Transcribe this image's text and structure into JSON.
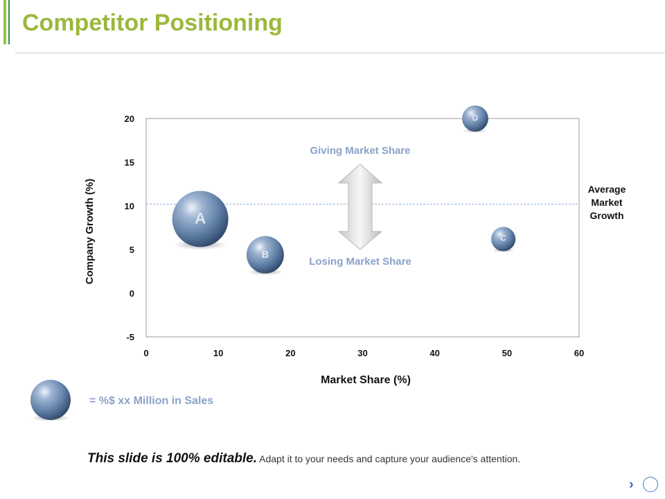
{
  "slide": {
    "title": "Competitor Positioning",
    "legend_text": "= %$ xx Million in Sales",
    "footer_bold": "This slide is 100% editable.",
    "footer_rest": "Adapt it to your needs and capture your audience's attention.",
    "nav_next_glyph": "›"
  },
  "chart_data": {
    "type": "scatter",
    "variant": "bubble",
    "xlabel": "Market Share (%)",
    "ylabel": "Company Growth (%)",
    "xlim": [
      0,
      60
    ],
    "ylim": [
      -5,
      20
    ],
    "xticks": [
      0,
      10,
      20,
      30,
      40,
      50,
      60
    ],
    "yticks": [
      -5,
      0,
      5,
      10,
      15,
      20
    ],
    "grid": false,
    "reference_line": {
      "y": 10.2,
      "label_lines": [
        "Average",
        "Market",
        "Growth"
      ]
    },
    "annotations": {
      "top": "Giving Market Share",
      "bottom": "Losing Market Share"
    },
    "bubble_color": "#5f7fa6",
    "points": [
      {
        "label": "A",
        "x": 7.5,
        "y": 8.5,
        "size": 3.0
      },
      {
        "label": "B",
        "x": 16.5,
        "y": 4.4,
        "size": 2.0
      },
      {
        "label": "C",
        "x": 49.5,
        "y": 6.2,
        "size": 1.3
      },
      {
        "label": "D",
        "x": 45.6,
        "y": 20.0,
        "size": 1.4
      }
    ]
  }
}
